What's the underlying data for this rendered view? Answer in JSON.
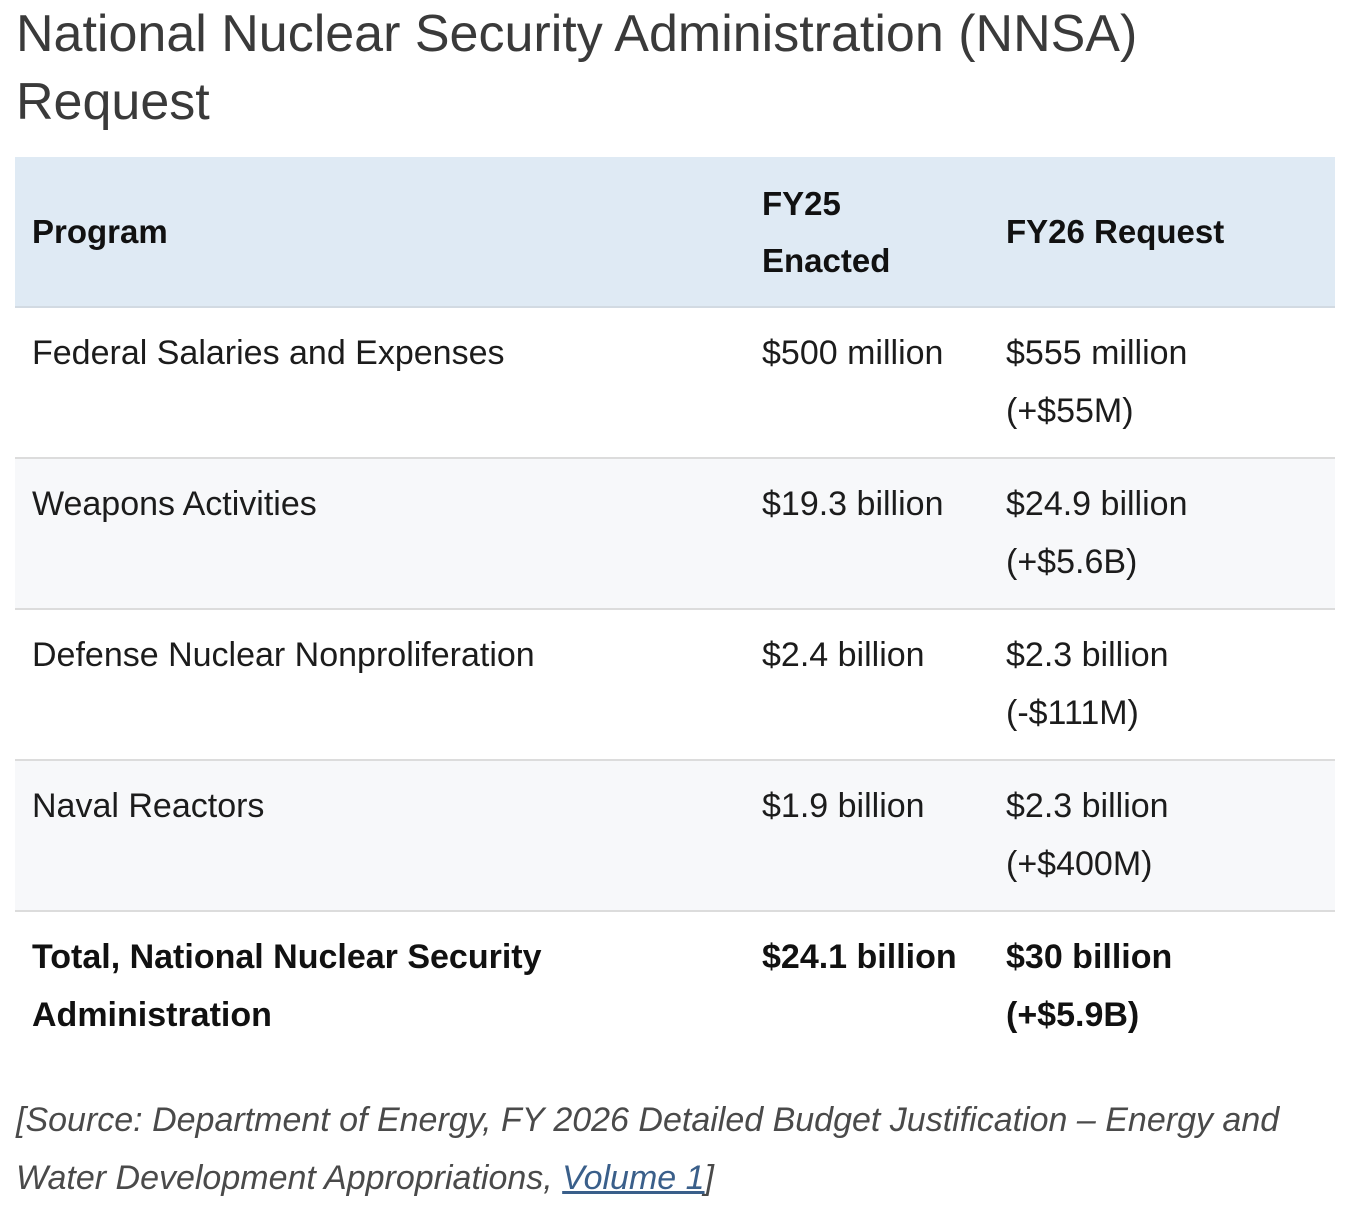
{
  "title": "National Nuclear Security Administration (NNSA) Request",
  "table": {
    "headers": {
      "program": "Program",
      "fy25_line1": "FY25",
      "fy25_line2": "Enacted",
      "fy26": "FY26 Request"
    },
    "rows": [
      {
        "program": "Federal Salaries and Expenses",
        "fy25": "$500 million",
        "fy26_amount": "$555 million",
        "fy26_change": "(+$55M)"
      },
      {
        "program": "Weapons Activities",
        "fy25": "$19.3 billion",
        "fy26_amount": "$24.9 billion",
        "fy26_change": "(+$5.6B)"
      },
      {
        "program": "Defense Nuclear Nonproliferation",
        "fy25": "$2.4 billion",
        "fy26_amount": "$2.3 billion",
        "fy26_change": "(-$111M)"
      },
      {
        "program": "Naval Reactors",
        "fy25": "$1.9 billion",
        "fy26_amount": "$2.3 billion",
        "fy26_change": "(+$400M)"
      }
    ],
    "total": {
      "program_line1": "Total, National Nuclear Security",
      "program_line2": "Administration",
      "fy25": "$24.1 billion",
      "fy26_amount": "$30 billion",
      "fy26_change": "(+$5.9B)"
    }
  },
  "source": {
    "prefix": "[Source: Department of Energy, FY 2026 Detailed Budget Justification – Energy and Water Development Appropriations, ",
    "link_text": "Volume 1",
    "suffix": "]"
  }
}
